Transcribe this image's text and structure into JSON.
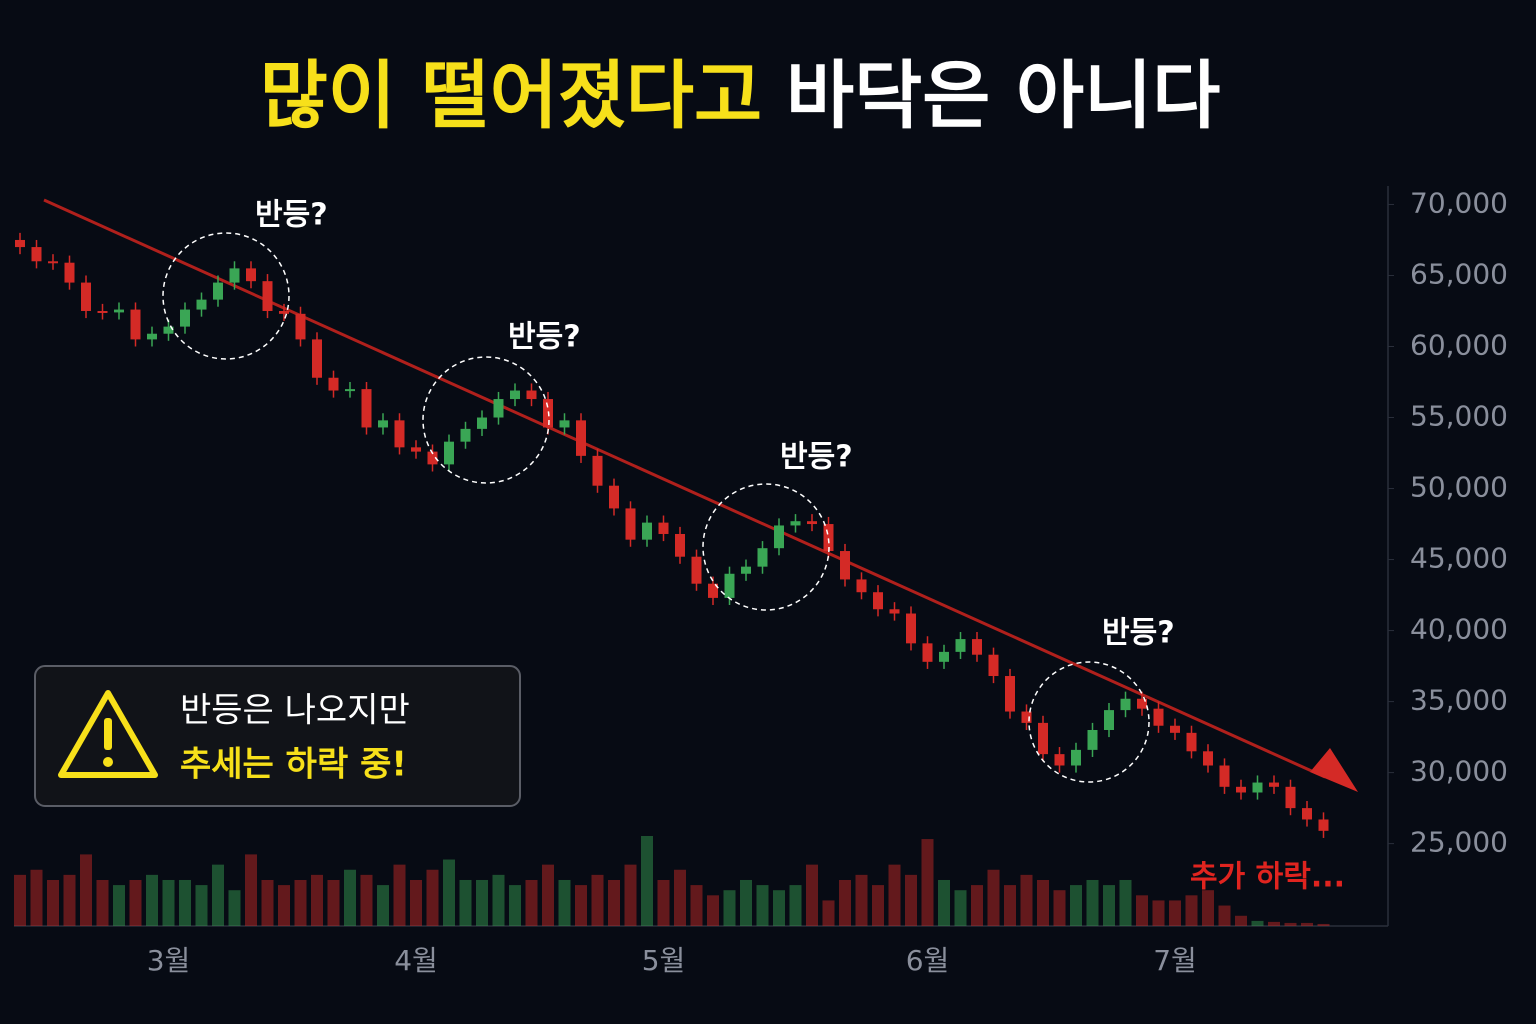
{
  "chart_data": {
    "type": "candlestick",
    "title": [
      "많이 떨어졌다고",
      "바닥은 아니다"
    ],
    "annotations": [
      "반등?",
      "반등?",
      "반등?",
      "반등?"
    ],
    "warning": [
      "반등은 나오지만",
      "추세는 하락 중!"
    ],
    "end_note": "추가 하락...",
    "categories": [
      null,
      null,
      null,
      null,
      null,
      null,
      null,
      null,
      null,
      "3월",
      null,
      null,
      null,
      null,
      null,
      null,
      null,
      null,
      null,
      null,
      null,
      null,
      null,
      null,
      "4월",
      null,
      null,
      null,
      null,
      null,
      null,
      null,
      null,
      null,
      null,
      null,
      null,
      null,
      null,
      "5월",
      null,
      null,
      null,
      null,
      null,
      null,
      null,
      null,
      null,
      null,
      null,
      null,
      null,
      null,
      null,
      "6월",
      null,
      null,
      null,
      null,
      null,
      null,
      null,
      null,
      null,
      null,
      null,
      null,
      null,
      null,
      "7월",
      null,
      null,
      null,
      null,
      null,
      null,
      null,
      null,
      null
    ],
    "open": [
      67500,
      67000,
      66000,
      65900,
      64500,
      62500,
      62400,
      62600,
      60500,
      60900,
      61400,
      62600,
      63300,
      64500,
      65500,
      64600,
      62500,
      62300,
      60500,
      57800,
      56900,
      57000,
      54300,
      54800,
      52900,
      52600,
      51700,
      53300,
      54200,
      55000,
      56300,
      56900,
      56300,
      54300,
      54800,
      52300,
      50200,
      48600,
      46400,
      47600,
      46800,
      45200,
      43300,
      42300,
      44000,
      44500,
      45800,
      47400,
      47700,
      47500,
      45600,
      43600,
      42700,
      41500,
      41200,
      39100,
      37800,
      38500,
      39400,
      38300,
      36800,
      34300,
      33500,
      31300,
      30500,
      31600,
      33000,
      34400,
      35200,
      34500,
      33300,
      32800,
      31500,
      30500,
      29000,
      28600,
      29300,
      29000,
      27500,
      26700
    ],
    "high": [
      68000,
      67500,
      66500,
      66400,
      65000,
      63000,
      63100,
      63100,
      61400,
      61900,
      63100,
      63800,
      65000,
      66000,
      66000,
      65100,
      63000,
      62800,
      61000,
      58300,
      57500,
      57500,
      55300,
      55300,
      53400,
      53100,
      53800,
      54700,
      55500,
      56800,
      57400,
      57400,
      56800,
      55300,
      55300,
      52800,
      50700,
      49100,
      48100,
      48100,
      47300,
      45700,
      43800,
      44500,
      45000,
      46300,
      47900,
      48200,
      48200,
      48000,
      46100,
      44100,
      43200,
      42000,
      41700,
      39600,
      39000,
      39900,
      39900,
      38800,
      37300,
      34800,
      34000,
      31800,
      32100,
      33500,
      34900,
      35700,
      35700,
      35000,
      33800,
      33300,
      32000,
      31000,
      29500,
      29800,
      29800,
      29500,
      28000,
      27200
    ],
    "low": [
      66500,
      65500,
      65400,
      64000,
      62000,
      61900,
      61900,
      60000,
      60000,
      60400,
      60900,
      62100,
      62800,
      64000,
      64100,
      62000,
      61800,
      60000,
      57300,
      56400,
      56400,
      53800,
      53800,
      52400,
      52100,
      51200,
      51200,
      52800,
      53700,
      54500,
      55800,
      55800,
      53800,
      53800,
      51800,
      49700,
      48100,
      45900,
      45900,
      46300,
      44700,
      42800,
      41800,
      41800,
      43500,
      44000,
      45300,
      46900,
      47000,
      45100,
      43100,
      42200,
      41000,
      40700,
      38600,
      37300,
      37300,
      38000,
      37800,
      36300,
      33800,
      33000,
      30800,
      30000,
      30000,
      31100,
      32500,
      33900,
      34000,
      32800,
      32300,
      31000,
      30000,
      28500,
      28100,
      28100,
      28500,
      27000,
      26200,
      25400
    ],
    "close": [
      67000,
      66000,
      65900,
      64500,
      62500,
      62400,
      62600,
      60500,
      60900,
      61400,
      62600,
      63300,
      64500,
      65500,
      64600,
      62500,
      62300,
      60500,
      57800,
      56900,
      57000,
      54300,
      54800,
      52900,
      52600,
      51700,
      53300,
      54200,
      55000,
      56300,
      56900,
      56300,
      54300,
      54800,
      52300,
      50200,
      48600,
      46400,
      47600,
      46800,
      45200,
      43300,
      42300,
      44000,
      44500,
      45800,
      47400,
      47700,
      47500,
      45600,
      43600,
      42700,
      41500,
      41200,
      39100,
      37800,
      38500,
      39400,
      38300,
      36800,
      34300,
      33500,
      31300,
      30500,
      31600,
      33000,
      34400,
      35200,
      34500,
      33300,
      32800,
      31500,
      30500,
      29000,
      28600,
      29300,
      29000,
      27500,
      26700,
      25900
    ],
    "volume": [
      50,
      55,
      45,
      50,
      70,
      45,
      40,
      45,
      50,
      45,
      45,
      40,
      60,
      35,
      70,
      45,
      40,
      45,
      50,
      45,
      55,
      50,
      40,
      60,
      45,
      55,
      65,
      45,
      45,
      50,
      40,
      45,
      60,
      45,
      40,
      50,
      45,
      60,
      88,
      45,
      55,
      40,
      30,
      35,
      45,
      40,
      35,
      40,
      60,
      25,
      45,
      50,
      40,
      60,
      50,
      85,
      45,
      35,
      40,
      55,
      40,
      50,
      45,
      35,
      40,
      45,
      40,
      45,
      30,
      25,
      25,
      30,
      35,
      20,
      10,
      5,
      4,
      3,
      3,
      2
    ],
    "up_color": "#3aa655",
    "down_color": "#d42a26",
    "ylim": [
      19200,
      71300
    ],
    "yticks": [
      {
        "value": 25000,
        "label": "25,000"
      },
      {
        "value": 30000,
        "label": "30,000"
      },
      {
        "value": 35000,
        "label": "35,000"
      },
      {
        "value": 40000,
        "label": "40,000"
      },
      {
        "value": 45000,
        "label": "45,000"
      },
      {
        "value": 50000,
        "label": "50,000"
      },
      {
        "value": 55000,
        "label": "55,000"
      },
      {
        "value": 60000,
        "label": "60,000"
      },
      {
        "value": 65000,
        "label": "65,000"
      },
      {
        "value": 70000,
        "label": "70,000"
      }
    ]
  }
}
